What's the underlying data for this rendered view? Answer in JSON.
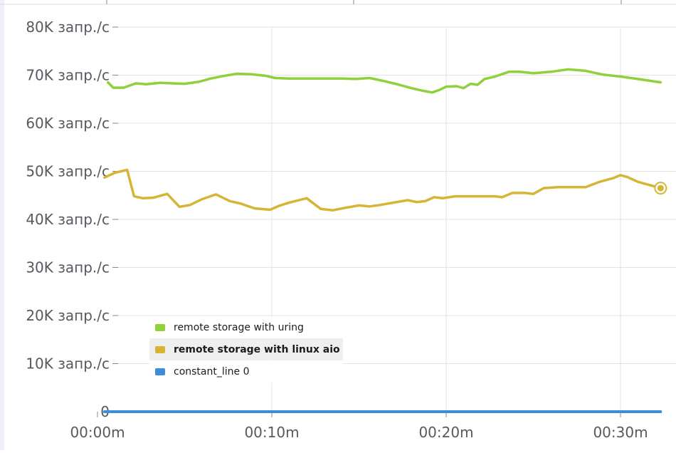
{
  "chart_data": {
    "type": "line",
    "title": "",
    "xlabel": "",
    "ylabel": "",
    "ylim": [
      0,
      80000
    ],
    "xlim": [
      0,
      32.3
    ],
    "y_unit": "запр./с",
    "y_ticks": [
      {
        "value": 0,
        "label": "0"
      },
      {
        "value": 10000,
        "label": "10K запр./с"
      },
      {
        "value": 20000,
        "label": "20K запр./с"
      },
      {
        "value": 30000,
        "label": "30K запр./с"
      },
      {
        "value": 40000,
        "label": "40K запр./с"
      },
      {
        "value": 50000,
        "label": "50K запр./с"
      },
      {
        "value": 60000,
        "label": "60K запр./с"
      },
      {
        "value": 70000,
        "label": "70K запр./с"
      },
      {
        "value": 80000,
        "label": "80K запр./с"
      }
    ],
    "x_ticks": [
      {
        "value": 0,
        "label": "00:00m"
      },
      {
        "value": 10,
        "label": "00:10m"
      },
      {
        "value": 20,
        "label": "00:20m"
      },
      {
        "value": 30,
        "label": "00:30m"
      }
    ],
    "grid": true,
    "legend_position": "bottom-left",
    "series": [
      {
        "name": "remote storage with uring",
        "color": "#8fd13c",
        "x": [
          0.6,
          0.9,
          1.5,
          2.2,
          2.8,
          3.6,
          4.3,
          5.0,
          5.8,
          6.5,
          7.2,
          8.0,
          8.8,
          9.6,
          10.2,
          11.0,
          12.0,
          13.0,
          14.0,
          14.8,
          15.6,
          16.4,
          17.2,
          18.0,
          18.6,
          19.2,
          19.6,
          20.0,
          20.6,
          21.0,
          21.4,
          21.8,
          22.2,
          22.8,
          23.6,
          24.2,
          25.0,
          26.0,
          27.0,
          28.0,
          29.0,
          30.0,
          31.0,
          32.3
        ],
        "y": [
          68500,
          67400,
          67400,
          68300,
          68100,
          68400,
          68300,
          68200,
          68600,
          69300,
          69800,
          70300,
          70200,
          69900,
          69400,
          69300,
          69300,
          69300,
          69300,
          69200,
          69400,
          68800,
          68100,
          67300,
          66800,
          66400,
          66900,
          67600,
          67700,
          67300,
          68200,
          68000,
          69200,
          69700,
          70700,
          70700,
          70400,
          70700,
          71200,
          70900,
          70100,
          69700,
          69200,
          68500
        ]
      },
      {
        "name": "remote storage with linux aio",
        "color": "#d6b535",
        "x": [
          0.4,
          1.0,
          1.7,
          2.1,
          2.6,
          3.2,
          4.0,
          4.7,
          5.3,
          6.0,
          6.8,
          7.6,
          8.2,
          9.0,
          9.9,
          10.4,
          11.0,
          12.0,
          12.8,
          13.5,
          14.2,
          15.0,
          15.6,
          16.2,
          17.0,
          17.8,
          18.3,
          18.8,
          19.3,
          19.8,
          20.5,
          21.2,
          22.0,
          22.8,
          23.2,
          23.8,
          24.5,
          25.0,
          25.6,
          26.4,
          27.2,
          28.0,
          28.8,
          29.6,
          30.0,
          30.4,
          31.0,
          32.3
        ],
        "y": [
          48700,
          49700,
          50300,
          44800,
          44400,
          44500,
          45300,
          42600,
          43000,
          44200,
          45200,
          43800,
          43300,
          42300,
          42000,
          42800,
          43500,
          44400,
          42200,
          41900,
          42400,
          42900,
          42700,
          43000,
          43500,
          44000,
          43600,
          43800,
          44600,
          44400,
          44800,
          44800,
          44800,
          44800,
          44600,
          45500,
          45500,
          45300,
          46500,
          46700,
          46700,
          46700,
          47800,
          48600,
          49200,
          48800,
          47800,
          46500
        ]
      },
      {
        "name": "constant_line 0",
        "color": "#3b8fd9",
        "x": [
          0.4,
          32.3
        ],
        "y": [
          0,
          0
        ]
      }
    ]
  },
  "legend": {
    "items": [
      {
        "label": "remote storage with uring",
        "color": "#8fd13c"
      },
      {
        "label": "remote storage with linux aio",
        "color": "#d6b535"
      },
      {
        "label": "constant_line 0",
        "color": "#3b8fd9"
      }
    ]
  },
  "hover_point": {
    "series": "remote storage with linux aio",
    "x": 32.3,
    "y": 46500,
    "color": "#d6b535"
  }
}
